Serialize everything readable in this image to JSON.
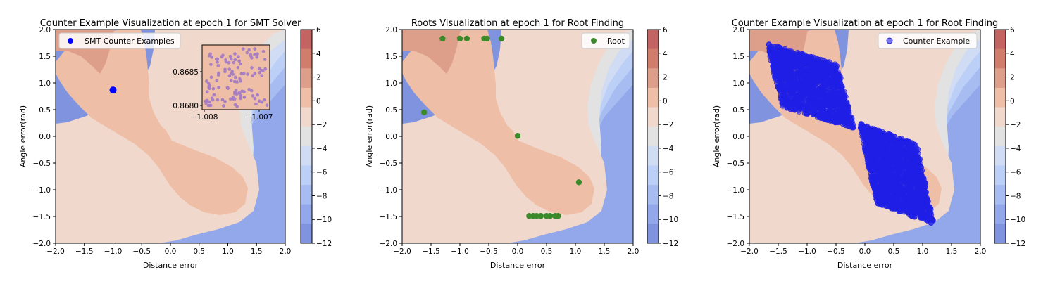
{
  "colors": {
    "levels": [
      "#7f93de",
      "#92a8ea",
      "#a7bdf2",
      "#bccff7",
      "#d0dcf4",
      "#e2e2e2",
      "#f1d8cc",
      "#eebfa6",
      "#dd9f8a",
      "#d07d6c",
      "#c36462"
    ],
    "smt_marker": "#0000ff",
    "inset_marker": "#a77fc2",
    "root_marker": "#3a8a2a",
    "ce_marker": "#1f1fe6"
  },
  "chart_data": [
    {
      "type": "contour",
      "title": "Counter Example Visualization at epoch 1 for SMT Solver",
      "xlabel": "Distance error",
      "ylabel": "Angle error(rad)",
      "xlim": [
        -2.0,
        2.0
      ],
      "ylim": [
        -2.0,
        2.0
      ],
      "xticks": [
        "−2.0",
        "−1.5",
        "−1.0",
        "−0.5",
        "0.0",
        "0.5",
        "1.0",
        "1.5",
        "2.0"
      ],
      "yticks": [
        "−2.0",
        "−1.5",
        "−1.0",
        "−0.5",
        "0.0",
        "0.5",
        "1.0",
        "1.5",
        "2.0"
      ],
      "colorbar_ticks": [
        "6",
        "4",
        "2",
        "0",
        "−2",
        "−4",
        "−6",
        "−8",
        "−10",
        "−12"
      ],
      "legend": {
        "label": "SMT Counter Examples",
        "position": "upper-left"
      },
      "series": [
        {
          "name": "SMT Counter Examples",
          "points": [
            [
              -1.0,
              0.866
            ]
          ]
        }
      ],
      "inset": {
        "xlim": [
          -1.0081,
          -1.0069
        ],
        "ylim": [
          0.8679,
          0.8688
        ],
        "xticks": [
          "−1.008",
          "−1.007"
        ],
        "yticks": [
          "0.8680",
          "0.8685"
        ],
        "point_count": 120
      }
    },
    {
      "type": "contour",
      "title": "Roots Visualization at epoch 1 for Root Finding",
      "xlabel": "Distance error",
      "ylabel": "Angle error(rad)",
      "xlim": [
        -2.0,
        2.0
      ],
      "ylim": [
        -2.0,
        2.0
      ],
      "xticks": [
        "−2.0",
        "−1.5",
        "−1.0",
        "−0.5",
        "0.0",
        "0.5",
        "1.0",
        "1.5",
        "2.0"
      ],
      "yticks": [
        "−2.0",
        "−1.5",
        "−1.0",
        "−0.5",
        "0.0",
        "0.5",
        "1.0",
        "1.5",
        "2.0"
      ],
      "colorbar_ticks": [
        "6",
        "4",
        "2",
        "0",
        "−2",
        "−4",
        "−6",
        "−8",
        "−10",
        "−12"
      ],
      "legend": {
        "label": "Root",
        "position": "upper-right"
      },
      "series": [
        {
          "name": "Root",
          "points": [
            [
              -1.3,
              1.83
            ],
            [
              -1.0,
              1.83
            ],
            [
              -0.88,
              1.83
            ],
            [
              -0.58,
              1.83
            ],
            [
              -0.53,
              1.83
            ],
            [
              -0.28,
              1.83
            ],
            [
              -1.62,
              0.45
            ],
            [
              0.0,
              0.01
            ],
            [
              1.06,
              -0.86
            ],
            [
              0.2,
              -1.49
            ],
            [
              0.27,
              -1.49
            ],
            [
              0.33,
              -1.49
            ],
            [
              0.4,
              -1.49
            ],
            [
              0.5,
              -1.49
            ],
            [
              0.56,
              -1.49
            ],
            [
              0.65,
              -1.49
            ],
            [
              0.7,
              -1.49
            ]
          ]
        }
      ]
    },
    {
      "type": "contour",
      "title": "Counter Example Visualization at epoch 1 for Root Finding",
      "xlabel": "Distance error",
      "ylabel": "Angle error(rad)",
      "xlim": [
        -2.0,
        2.0
      ],
      "ylim": [
        -2.0,
        2.0
      ],
      "xticks": [
        "−2.0",
        "−1.5",
        "−1.0",
        "−0.5",
        "0.0",
        "0.5",
        "1.0",
        "1.5",
        "2.0"
      ],
      "yticks": [
        "−2.0",
        "−1.5",
        "−1.0",
        "−0.5",
        "0.0",
        "0.5",
        "1.0",
        "1.5",
        "2.0"
      ],
      "colorbar_ticks": [
        "6",
        "4",
        "2",
        "0",
        "−2",
        "−4",
        "−6",
        "−8",
        "−10",
        "−12"
      ],
      "legend": {
        "label": "Counter Example",
        "position": "upper-right"
      },
      "series": [
        {
          "name": "Counter Example",
          "clusters": [
            {
              "center": [
                -0.95,
                0.95
              ],
              "spread": [
                0.62,
                0.6
              ],
              "count": 1500
            },
            {
              "center": [
                0.55,
                -0.7
              ],
              "spread": [
                0.5,
                0.75
              ],
              "count": 1700
            }
          ]
        }
      ]
    }
  ]
}
